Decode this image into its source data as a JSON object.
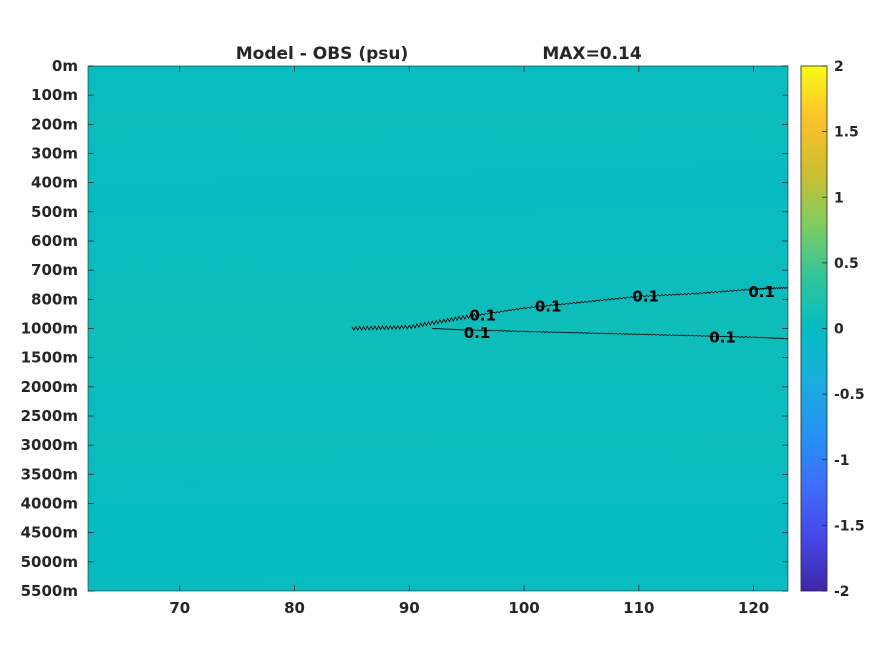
{
  "chart_data": {
    "type": "heatmap",
    "title_left": "Model - OBS (psu)",
    "title_right": "MAX=0.14",
    "x": {
      "ticks": [
        70,
        80,
        90,
        100,
        110,
        120
      ],
      "lim": [
        62,
        123
      ]
    },
    "y": {
      "tick_labels": [
        "0m",
        "100m",
        "200m",
        "300m",
        "400m",
        "500m",
        "600m",
        "700m",
        "800m",
        "1000m",
        "1500m",
        "2000m",
        "2500m",
        "3000m",
        "3500m",
        "4000m",
        "4500m",
        "5000m",
        "5500m"
      ]
    },
    "colorbar": {
      "ticks": [
        2,
        1.5,
        1,
        0.5,
        0,
        -0.5,
        -1,
        -1.5,
        -2
      ],
      "lim": [
        -2,
        2
      ],
      "colormap": "parula"
    },
    "field_bands": [
      {
        "depth_index": 0.0,
        "value": 0.02
      },
      {
        "depth_index": 2.0,
        "value": 0.06
      },
      {
        "depth_index": 3.5,
        "value": 0.03
      },
      {
        "depth_index": 7.0,
        "value": 0.05
      },
      {
        "depth_index": 9.0,
        "value": 0.09
      },
      {
        "depth_index": 10.0,
        "value": 0.06
      },
      {
        "depth_index": 12.0,
        "value": 0.04
      },
      {
        "depth_index": 13.0,
        "value": 0.06
      },
      {
        "depth_index": 14.5,
        "value": 0.03
      },
      {
        "depth_index": 16.0,
        "value": 0.01
      },
      {
        "depth_index": 18.0,
        "value": 0.03
      }
    ],
    "contours": [
      {
        "level": 0.1,
        "points": [
          [
            85,
            9.0
          ],
          [
            90,
            8.95
          ],
          [
            95,
            8.6
          ],
          [
            100,
            8.3
          ],
          [
            105,
            8.1
          ],
          [
            110,
            7.9
          ],
          [
            115,
            7.8
          ],
          [
            120,
            7.65
          ],
          [
            123,
            7.6
          ]
        ]
      },
      {
        "level": 0.1,
        "points": [
          [
            92,
            9.0
          ],
          [
            95,
            9.05
          ],
          [
            100,
            9.1
          ],
          [
            105,
            9.15
          ],
          [
            110,
            9.2
          ],
          [
            115,
            9.25
          ],
          [
            120,
            9.3
          ],
          [
            123,
            9.35
          ]
        ]
      }
    ],
    "contour_labels": [
      {
        "text": "0.1",
        "x": 96.4,
        "y": 8.55
      },
      {
        "text": "0.1",
        "x": 102.1,
        "y": 8.25
      },
      {
        "text": "0.1",
        "x": 110.6,
        "y": 7.9
      },
      {
        "text": "0.1",
        "x": 120.7,
        "y": 7.75
      },
      {
        "text": "0.1",
        "x": 95.9,
        "y": 9.15
      },
      {
        "text": "0.1",
        "x": 117.3,
        "y": 9.3
      }
    ]
  }
}
